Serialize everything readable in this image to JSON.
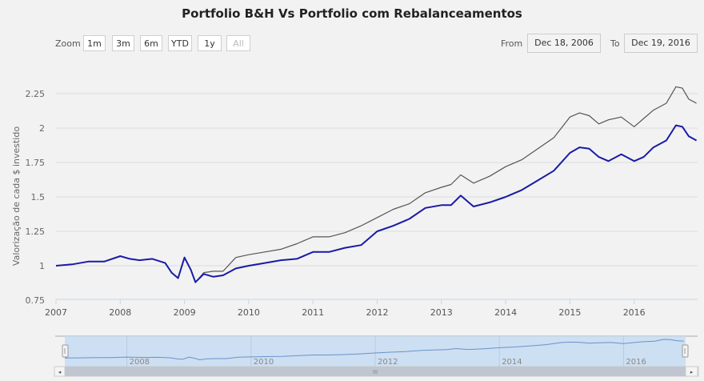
{
  "title": "Portfolio B&H Vs Portfolio com Rebalanceamentos",
  "range_selector": {
    "zoom_label": "Zoom",
    "buttons": [
      {
        "label": "1m",
        "enabled": true
      },
      {
        "label": "3m",
        "enabled": true
      },
      {
        "label": "6m",
        "enabled": true
      },
      {
        "label": "YTD",
        "enabled": true
      },
      {
        "label": "1y",
        "enabled": true
      },
      {
        "label": "All",
        "enabled": false
      }
    ],
    "from_label": "From",
    "from_value": "Dec 18, 2006",
    "to_label": "To",
    "to_value": "Dec 19, 2016"
  },
  "colors": {
    "bh": "#555555",
    "rebal": "#1a1aa6",
    "navigator_fill": "#c7dcf2",
    "navigator_line": "#6a93c9"
  },
  "navigator": {
    "labels": [
      "2008",
      "2010",
      "2012",
      "2014",
      "2016"
    ],
    "scrollbar_grip": "III"
  },
  "chart_data": {
    "type": "line",
    "title": "Portfolio B&H Vs Portfolio com Rebalanceamentos",
    "xlabel": "",
    "ylabel": "Valorização de cada $ investido",
    "ylim": [
      0.75,
      2.35
    ],
    "xlim": [
      2007.0,
      2017.0
    ],
    "yticks": [
      0.75,
      1,
      1.25,
      1.5,
      1.75,
      2,
      2.25
    ],
    "ytick_labels": [
      "0.75",
      "1",
      "1.25",
      "1.5",
      "1.75",
      "2",
      "2.25"
    ],
    "xticks": [
      2007,
      2008,
      2009,
      2010,
      2011,
      2012,
      2013,
      2014,
      2015,
      2016
    ],
    "xtick_labels": [
      "2007",
      "2008",
      "2009",
      "2010",
      "2011",
      "2012",
      "2013",
      "2014",
      "2015",
      "2016"
    ],
    "grid": true,
    "legend": "none",
    "x": [
      2007.0,
      2007.25,
      2007.5,
      2007.75,
      2008.0,
      2008.15,
      2008.3,
      2008.5,
      2008.7,
      2008.8,
      2008.9,
      2009.0,
      2009.1,
      2009.17,
      2009.3,
      2009.45,
      2009.6,
      2009.8,
      2010.0,
      2010.25,
      2010.5,
      2010.75,
      2011.0,
      2011.25,
      2011.5,
      2011.75,
      2012.0,
      2012.25,
      2012.5,
      2012.75,
      2013.0,
      2013.15,
      2013.3,
      2013.5,
      2013.75,
      2014.0,
      2014.25,
      2014.5,
      2014.75,
      2015.0,
      2015.15,
      2015.3,
      2015.45,
      2015.6,
      2015.8,
      2016.0,
      2016.15,
      2016.3,
      2016.5,
      2016.65,
      2016.75,
      2016.85,
      2016.97
    ],
    "series": [
      {
        "name": "Portfolio B&H",
        "values": [
          1.0,
          1.01,
          1.03,
          1.03,
          1.07,
          1.05,
          1.04,
          1.05,
          1.02,
          0.95,
          0.91,
          1.06,
          0.97,
          0.88,
          0.95,
          0.96,
          0.96,
          1.06,
          1.08,
          1.1,
          1.12,
          1.16,
          1.21,
          1.21,
          1.24,
          1.29,
          1.35,
          1.41,
          1.45,
          1.53,
          1.57,
          1.59,
          1.66,
          1.6,
          1.65,
          1.72,
          1.77,
          1.85,
          1.93,
          2.08,
          2.11,
          2.09,
          2.03,
          2.06,
          2.08,
          2.01,
          2.07,
          2.13,
          2.18,
          2.3,
          2.29,
          2.21,
          2.18
        ]
      },
      {
        "name": "Portfolio com Rebalanceamentos",
        "values": [
          1.0,
          1.01,
          1.03,
          1.03,
          1.07,
          1.05,
          1.04,
          1.05,
          1.02,
          0.95,
          0.91,
          1.06,
          0.97,
          0.88,
          0.94,
          0.92,
          0.93,
          0.98,
          1.0,
          1.02,
          1.04,
          1.05,
          1.1,
          1.1,
          1.13,
          1.15,
          1.25,
          1.29,
          1.34,
          1.42,
          1.44,
          1.44,
          1.51,
          1.43,
          1.46,
          1.5,
          1.55,
          1.62,
          1.69,
          1.82,
          1.86,
          1.85,
          1.79,
          1.76,
          1.81,
          1.76,
          1.79,
          1.86,
          1.91,
          2.02,
          2.01,
          1.94,
          1.91
        ]
      }
    ]
  }
}
